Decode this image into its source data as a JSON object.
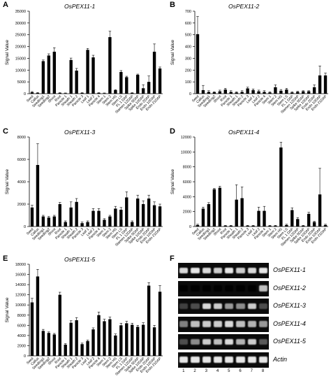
{
  "panels": {
    "A": {
      "letter": "A"
    },
    "B": {
      "letter": "B"
    },
    "C": {
      "letter": "C"
    },
    "D": {
      "letter": "D"
    },
    "E": {
      "letter": "E"
    },
    "F": {
      "letter": "F"
    }
  },
  "chart_data": [
    {
      "panel": "A",
      "type": "bar",
      "title": "OsPEX11-1",
      "ylabel": "Signal Value",
      "xlabel": "",
      "ylim": [
        0,
        35000
      ],
      "yticks": [
        0,
        5000,
        10000,
        15000,
        20000,
        25000,
        30000,
        35000
      ],
      "categories": [
        "Seed",
        "Callus",
        "Seedling1",
        "Seedling2",
        "Shoot",
        "Root",
        "Panicle 1",
        "Sheath 1",
        "Sheath 2",
        "Panicle 3",
        "Leaf 1",
        "Leaf 2",
        "Panicle 4",
        "Stem 1",
        "Stem 2",
        "Stem HS",
        "Stem LS",
        "FL 1 DAP",
        "Stamen 12DAP",
        "Spike 5DAP",
        "Spike 10DAP",
        "Endo 2DAP",
        "Endo 10DAP",
        "Endo 21DAP"
      ],
      "values": [
        600,
        300,
        13800,
        16200,
        17800,
        300,
        200,
        14300,
        9800,
        300,
        18600,
        15400,
        300,
        200,
        24000,
        1500,
        9200,
        7000,
        300,
        8000,
        2300,
        5000,
        17800,
        10700
      ],
      "errors": [
        300,
        200,
        500,
        700,
        1700,
        100,
        100,
        800,
        900,
        100,
        600,
        900,
        100,
        100,
        2500,
        200,
        600,
        400,
        100,
        300,
        1500,
        2500,
        3300,
        600
      ],
      "legend": false,
      "grid": false
    },
    {
      "panel": "B",
      "type": "bar",
      "title": "OsPEX11-2",
      "ylabel": "Signal Value",
      "xlabel": "",
      "ylim": [
        0,
        700
      ],
      "yticks": [
        0,
        100,
        200,
        300,
        400,
        500,
        600,
        700
      ],
      "categories": [
        "Seed",
        "Callus",
        "Seedling1",
        "Seedling2",
        "Shoot",
        "Root",
        "Panicle 1",
        "Sheath 1",
        "Sheath 2",
        "Panicle 3",
        "Leaf 1",
        "Leaf 2",
        "Panicle 4",
        "Stem 1",
        "Stem 2",
        "Stem HS",
        "Stem LS",
        "FL 1 DAP",
        "Stamen 12DAP",
        "Spike 5DAP",
        "Spike 10DAP",
        "Endo 2DAP",
        "Endo 10DAP",
        "Endo 21DAP"
      ],
      "values": [
        505,
        30,
        15,
        12,
        20,
        35,
        15,
        10,
        15,
        45,
        30,
        20,
        15,
        10,
        55,
        25,
        35,
        10,
        15,
        20,
        20,
        55,
        155,
        155
      ],
      "errors": [
        150,
        40,
        10,
        5,
        10,
        10,
        10,
        5,
        10,
        10,
        10,
        10,
        10,
        5,
        20,
        10,
        10,
        5,
        5,
        5,
        5,
        20,
        80,
        20
      ],
      "legend": false,
      "grid": false
    },
    {
      "panel": "C",
      "type": "bar",
      "title": "OsPEX11-3",
      "ylabel": "Signal Value",
      "xlabel": "",
      "ylim": [
        0,
        8000
      ],
      "yticks": [
        0,
        2000,
        4000,
        6000,
        8000
      ],
      "categories": [
        "Seed",
        "Callus",
        "Seedling1",
        "Seedling2",
        "Shoot",
        "Root",
        "Panicle 1",
        "Sheath 1",
        "Sheath 2",
        "Panicle 3",
        "Leaf 1",
        "Leaf 2",
        "Panicle 4",
        "Stem 1",
        "Stem 2",
        "Stem HS",
        "Stem LS",
        "FL 1 DAP",
        "Stamen 12DAP",
        "Spike 5DAP",
        "Spike 10DAP",
        "Endo 2DAP",
        "Endo 10DAP",
        "Endo 21DAP"
      ],
      "values": [
        1700,
        5500,
        900,
        800,
        900,
        2000,
        400,
        1700,
        2200,
        300,
        400,
        1400,
        1400,
        600,
        900,
        1600,
        1500,
        2600,
        400,
        2500,
        2000,
        2500,
        1900,
        1800
      ],
      "errors": [
        200,
        1900,
        100,
        100,
        100,
        150,
        100,
        500,
        300,
        100,
        100,
        200,
        200,
        100,
        100,
        200,
        200,
        500,
        100,
        300,
        300,
        300,
        300,
        200
      ],
      "legend": false,
      "grid": false
    },
    {
      "panel": "D",
      "type": "bar",
      "title": "OsPEX11-4",
      "ylabel": "Signal Value",
      "xlabel": "",
      "ylim": [
        0,
        12000
      ],
      "yticks": [
        0,
        2000,
        4000,
        6000,
        8000,
        10000,
        12000
      ],
      "categories": [
        "Seed",
        "Callus",
        "Seedling1",
        "Seedling2",
        "Shoot",
        "Root",
        "Panicle 1",
        "Sheath 1",
        "Sheath 2",
        "Panicle 3",
        "Leaf 1",
        "Leaf 2",
        "Panicle 4",
        "Stem 1",
        "Stem 2",
        "Stem HS",
        "Stem LS",
        "FL 1 DAP",
        "Stamen 12DAP",
        "Spike 5DAP",
        "Spike 10DAP",
        "Endo 2DAP",
        "Endo 10DAP",
        "Endo 21DAP"
      ],
      "values": [
        200,
        2400,
        3000,
        5000,
        5200,
        100,
        100,
        3600,
        3800,
        100,
        100,
        2100,
        2100,
        100,
        100,
        10600,
        200,
        2200,
        1000,
        100,
        1700,
        600,
        4300,
        200
      ],
      "errors": [
        100,
        200,
        200,
        100,
        200,
        50,
        50,
        2000,
        1500,
        50,
        50,
        500,
        600,
        50,
        50,
        700,
        100,
        300,
        200,
        50,
        200,
        100,
        3500,
        100
      ],
      "legend": false,
      "grid": false
    },
    {
      "panel": "E",
      "type": "bar",
      "title": "OsPEX11-5",
      "ylabel": "Signal Value",
      "xlabel": "",
      "ylim": [
        0,
        18000
      ],
      "yticks": [
        0,
        2000,
        4000,
        6000,
        8000,
        10000,
        12000,
        14000,
        16000,
        18000
      ],
      "categories": [
        "Seed",
        "Callus",
        "Seedling1",
        "Seedling2",
        "Shoot",
        "Root",
        "Panicle 1",
        "Sheath 1",
        "Sheath 2",
        "Panicle 3",
        "Leaf 1",
        "Leaf 2",
        "Panicle 4",
        "Stem 1",
        "Stem 2",
        "Stem HS",
        "Stem LS",
        "FL 1 DAP",
        "Stamen 12DAP",
        "Spike 5DAP",
        "Spike 10DAP",
        "Endo 2DAP",
        "Endo 10DAP",
        "Endo 21DAP"
      ],
      "values": [
        10500,
        15600,
        4900,
        4500,
        4200,
        12000,
        2200,
        6500,
        7000,
        2300,
        2900,
        5200,
        8000,
        6800,
        7200,
        4000,
        6000,
        6400,
        6100,
        5700,
        6100,
        13800,
        5600,
        12600
      ],
      "errors": [
        800,
        1400,
        300,
        200,
        200,
        500,
        200,
        400,
        500,
        200,
        200,
        300,
        600,
        400,
        400,
        300,
        400,
        400,
        300,
        300,
        400,
        600,
        400,
        1200
      ],
      "legend": false,
      "grid": false
    }
  ],
  "gel": {
    "labels": [
      "OsPEX11-1",
      "OsPEX11-2",
      "OsPEX11-3",
      "OsPEX11-4",
      "OsPEX11-5",
      "Actin"
    ],
    "lanes": [
      "1",
      "2",
      "3",
      "4",
      "5",
      "6",
      "7",
      "8"
    ],
    "intensity": [
      [
        0.85,
        0.9,
        0.85,
        0.8,
        0.9,
        0.8,
        0.85,
        0.9
      ],
      [
        0.0,
        0.0,
        0.0,
        0.0,
        0.0,
        0.0,
        0.0,
        0.75
      ],
      [
        0.25,
        0.3,
        0.85,
        0.8,
        0.6,
        0.55,
        0.8,
        0.3
      ],
      [
        0.5,
        0.75,
        0.8,
        0.8,
        0.85,
        0.75,
        0.7,
        0.6
      ],
      [
        0.3,
        0.55,
        0.8,
        0.75,
        0.85,
        0.7,
        0.8,
        0.35
      ],
      [
        0.9,
        0.9,
        0.9,
        0.9,
        0.9,
        0.9,
        0.9,
        0.9
      ]
    ]
  }
}
